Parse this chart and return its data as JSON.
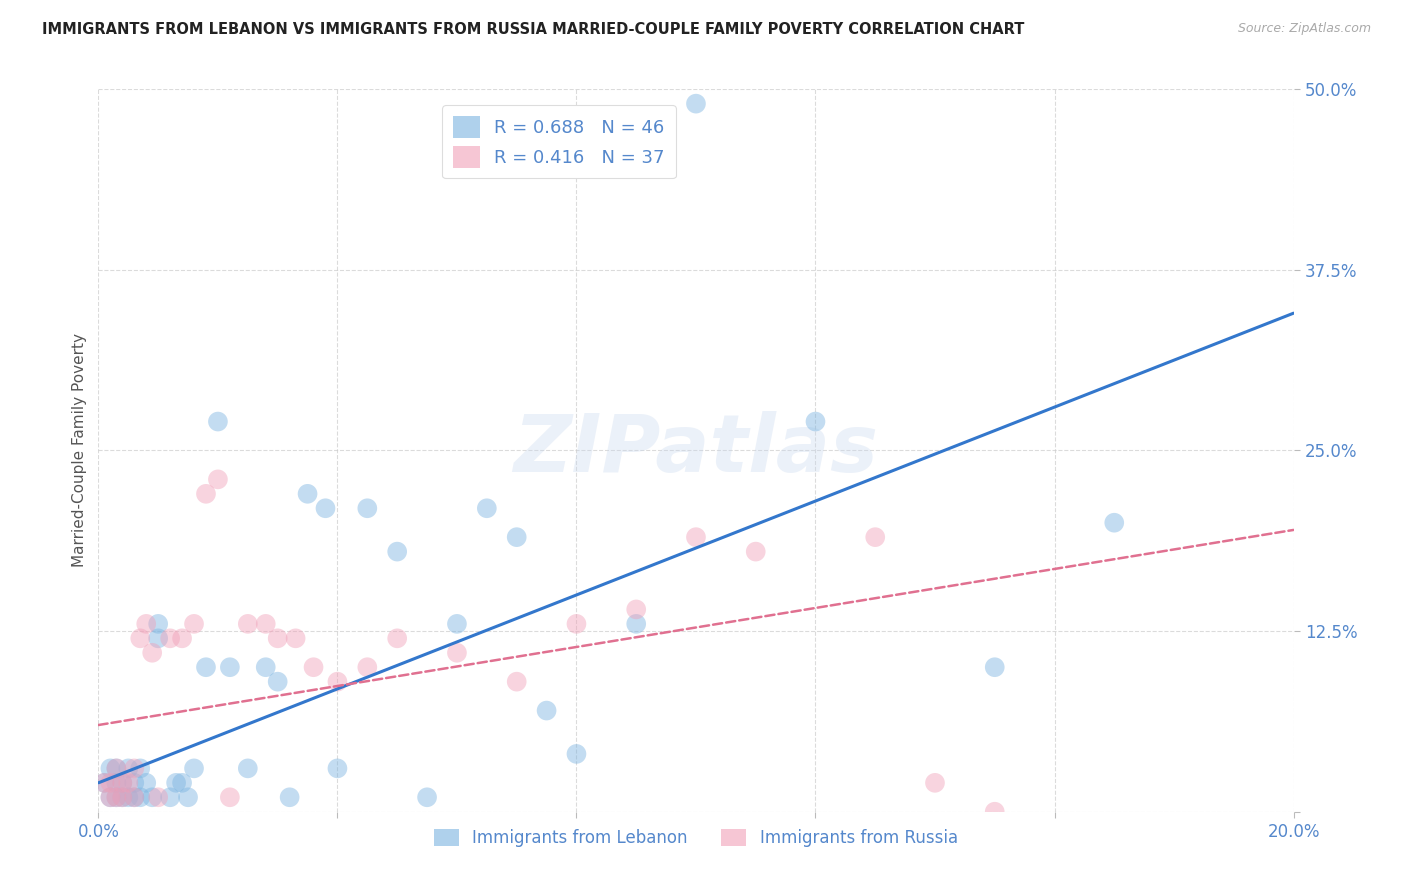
{
  "title": "IMMIGRANTS FROM LEBANON VS IMMIGRANTS FROM RUSSIA MARRIED-COUPLE FAMILY POVERTY CORRELATION CHART",
  "source": "Source: ZipAtlas.com",
  "ylabel": "Married-Couple Family Poverty",
  "xlim": [
    0.0,
    0.2
  ],
  "ylim": [
    0.0,
    0.5
  ],
  "xticks": [
    0.0,
    0.04,
    0.08,
    0.12,
    0.16,
    0.2
  ],
  "yticks": [
    0.0,
    0.125,
    0.25,
    0.375,
    0.5
  ],
  "xtick_labels": [
    "0.0%",
    "",
    "",
    "",
    "",
    "20.0%"
  ],
  "ytick_labels": [
    "",
    "12.5%",
    "25.0%",
    "37.5%",
    "50.0%"
  ],
  "background_color": "#ffffff",
  "grid_color": "#cccccc",
  "lebanon_color": "#7ab3e0",
  "russia_color": "#f0a0b8",
  "lebanon_line_color": "#3377cc",
  "russia_line_color": "#e07090",
  "lebanon_R": 0.688,
  "lebanon_N": 46,
  "russia_R": 0.416,
  "russia_N": 37,
  "lebanon_scatter_x": [
    0.001,
    0.002,
    0.002,
    0.003,
    0.003,
    0.003,
    0.004,
    0.004,
    0.005,
    0.005,
    0.006,
    0.006,
    0.007,
    0.007,
    0.008,
    0.009,
    0.01,
    0.01,
    0.012,
    0.013,
    0.014,
    0.015,
    0.016,
    0.018,
    0.02,
    0.022,
    0.025,
    0.028,
    0.03,
    0.032,
    0.035,
    0.038,
    0.04,
    0.045,
    0.05,
    0.055,
    0.06,
    0.065,
    0.07,
    0.075,
    0.08,
    0.09,
    0.1,
    0.12,
    0.15,
    0.17
  ],
  "lebanon_scatter_y": [
    0.02,
    0.01,
    0.03,
    0.01,
    0.02,
    0.03,
    0.01,
    0.02,
    0.01,
    0.03,
    0.01,
    0.02,
    0.01,
    0.03,
    0.02,
    0.01,
    0.12,
    0.13,
    0.01,
    0.02,
    0.02,
    0.01,
    0.03,
    0.1,
    0.27,
    0.1,
    0.03,
    0.1,
    0.09,
    0.01,
    0.22,
    0.21,
    0.03,
    0.21,
    0.18,
    0.01,
    0.13,
    0.21,
    0.19,
    0.07,
    0.04,
    0.13,
    0.49,
    0.27,
    0.1,
    0.2
  ],
  "russia_scatter_x": [
    0.001,
    0.002,
    0.002,
    0.003,
    0.003,
    0.004,
    0.004,
    0.005,
    0.006,
    0.006,
    0.007,
    0.008,
    0.009,
    0.01,
    0.012,
    0.014,
    0.016,
    0.018,
    0.02,
    0.022,
    0.025,
    0.028,
    0.03,
    0.033,
    0.036,
    0.04,
    0.045,
    0.05,
    0.06,
    0.07,
    0.08,
    0.09,
    0.1,
    0.11,
    0.13,
    0.14,
    0.15
  ],
  "russia_scatter_y": [
    0.02,
    0.01,
    0.02,
    0.01,
    0.03,
    0.01,
    0.02,
    0.02,
    0.01,
    0.03,
    0.12,
    0.13,
    0.11,
    0.01,
    0.12,
    0.12,
    0.13,
    0.22,
    0.23,
    0.01,
    0.13,
    0.13,
    0.12,
    0.12,
    0.1,
    0.09,
    0.1,
    0.12,
    0.11,
    0.09,
    0.13,
    0.14,
    0.19,
    0.18,
    0.19,
    0.02,
    0.0
  ],
  "leb_line_x0": 0.0,
  "leb_line_y0": 0.02,
  "leb_line_x1": 0.2,
  "leb_line_y1": 0.345,
  "rus_line_x0": 0.0,
  "rus_line_y0": 0.06,
  "rus_line_x1": 0.2,
  "rus_line_y1": 0.195,
  "watermark_text": "ZIPatlas",
  "legend_label1": "R = 0.688   N = 46",
  "legend_label2": "R = 0.416   N = 37",
  "bottom_legend1": "Immigrants from Lebanon",
  "bottom_legend2": "Immigrants from Russia"
}
